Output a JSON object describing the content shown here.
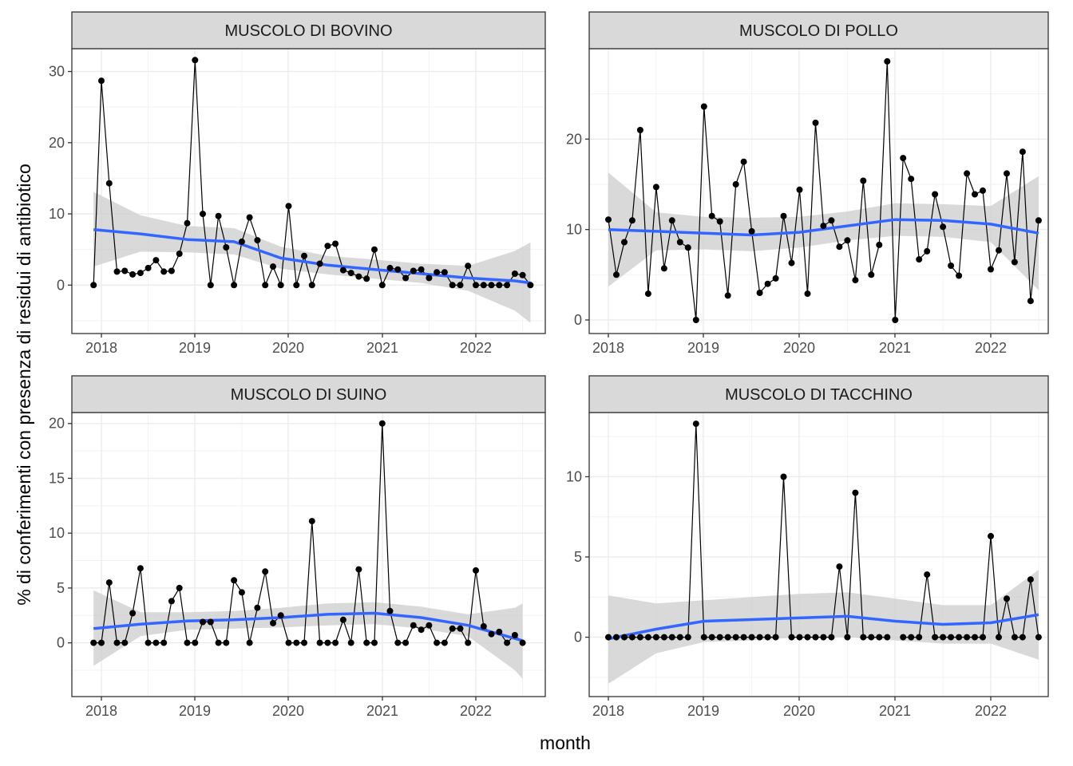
{
  "chart_data": {
    "type": "line",
    "xlabel": "month",
    "ylabel": "% di conferimenti con presenza di residui di antibiotico",
    "grid": true,
    "x_ticks": [
      "2018",
      "2019",
      "2020",
      "2021",
      "2022"
    ],
    "colors": {
      "smooth": "#3366FF",
      "ribbon": "#cccccc",
      "points": "#000000",
      "strip_bg": "#d9d9d9"
    },
    "panels": [
      {
        "title": "MUSCOLO DI BOVINO",
        "start_month": "2017-12",
        "ylim": [
          -6.8,
          33.2
        ],
        "yticks": [
          0,
          10,
          20,
          30
        ],
        "values": [
          0,
          28.7,
          14.3,
          1.9,
          2.0,
          1.5,
          1.7,
          2.4,
          3.5,
          1.9,
          2.0,
          4.4,
          8.7,
          31.6,
          10.0,
          0,
          9.7,
          5.3,
          0,
          6.1,
          9.5,
          6.3,
          0,
          2.6,
          0,
          11.1,
          0,
          4.1,
          0,
          3.0,
          5.5,
          5.8,
          2.1,
          1.7,
          1.2,
          0.9,
          5.0,
          0,
          2.4,
          2.2,
          1.0,
          2.0,
          2.2,
          1.0,
          1.8,
          1.8,
          0,
          0,
          2.7,
          0,
          0,
          0,
          0,
          0,
          1.6,
          1.4,
          0
        ],
        "smooth": [
          [
            0,
            7.8
          ],
          [
            6,
            7.2
          ],
          [
            12,
            6.4
          ],
          [
            18,
            6.1
          ],
          [
            24,
            3.8
          ],
          [
            30,
            2.8
          ],
          [
            36,
            2.2
          ],
          [
            42,
            1.6
          ],
          [
            48,
            1.0
          ],
          [
            54,
            0.6
          ],
          [
            56,
            0.3
          ]
        ],
        "ribbon_upper": [
          [
            0,
            13.1
          ],
          [
            6,
            9.8
          ],
          [
            12,
            8.3
          ],
          [
            18,
            8.0
          ],
          [
            24,
            5.4
          ],
          [
            30,
            4.1
          ],
          [
            36,
            3.6
          ],
          [
            42,
            3.0
          ],
          [
            48,
            2.7
          ],
          [
            54,
            4.8
          ],
          [
            56,
            6.0
          ]
        ],
        "ribbon_lower": [
          [
            0,
            2.6
          ],
          [
            6,
            4.7
          ],
          [
            12,
            4.6
          ],
          [
            18,
            4.3
          ],
          [
            24,
            2.3
          ],
          [
            30,
            1.5
          ],
          [
            36,
            0.9
          ],
          [
            42,
            0.3
          ],
          [
            48,
            -0.8
          ],
          [
            54,
            -3.6
          ],
          [
            56,
            -5.3
          ]
        ]
      },
      {
        "title": "MUSCOLO DI POLLO",
        "start_month": "2018-01",
        "ylim": [
          -1.5,
          30.0
        ],
        "yticks": [
          0,
          10,
          20
        ],
        "values": [
          11.1,
          5.0,
          8.6,
          11.0,
          21.0,
          2.9,
          14.7,
          5.7,
          11.0,
          8.6,
          8.0,
          0,
          23.6,
          11.5,
          10.9,
          2.7,
          15.0,
          17.5,
          9.8,
          3.0,
          4.0,
          4.6,
          11.5,
          6.3,
          14.4,
          2.9,
          21.8,
          10.4,
          11.0,
          8.1,
          8.8,
          4.4,
          15.4,
          5.0,
          8.3,
          28.6,
          0,
          17.9,
          15.6,
          6.7,
          7.6,
          13.9,
          10.3,
          6.0,
          4.9,
          16.2,
          13.9,
          14.3,
          5.6,
          7.7,
          16.2,
          6.4,
          18.6,
          2.1,
          11.0
        ],
        "smooth": [
          [
            0,
            10.0
          ],
          [
            6,
            9.8
          ],
          [
            12,
            9.6
          ],
          [
            18,
            9.4
          ],
          [
            24,
            9.7
          ],
          [
            30,
            10.4
          ],
          [
            36,
            11.1
          ],
          [
            42,
            11.0
          ],
          [
            48,
            10.6
          ],
          [
            54,
            9.6
          ]
        ],
        "ribbon_upper": [
          [
            0,
            16.3
          ],
          [
            6,
            11.9
          ],
          [
            12,
            11.4
          ],
          [
            18,
            11.3
          ],
          [
            24,
            11.4
          ],
          [
            30,
            12.0
          ],
          [
            36,
            12.9
          ],
          [
            42,
            12.8
          ],
          [
            48,
            12.6
          ],
          [
            54,
            15.9
          ]
        ],
        "ribbon_lower": [
          [
            0,
            3.7
          ],
          [
            6,
            7.7
          ],
          [
            12,
            7.8
          ],
          [
            18,
            7.6
          ],
          [
            24,
            8.0
          ],
          [
            30,
            8.8
          ],
          [
            36,
            9.3
          ],
          [
            42,
            9.2
          ],
          [
            48,
            8.6
          ],
          [
            54,
            3.3
          ]
        ]
      },
      {
        "title": "MUSCOLO DI SUINO",
        "start_month": "2017-12",
        "ylim": [
          -4.9,
          21.0
        ],
        "yticks": [
          0,
          5,
          10,
          15,
          20
        ],
        "values": [
          0,
          0,
          5.5,
          0,
          0,
          2.7,
          6.8,
          0,
          0,
          0,
          3.8,
          5.0,
          0,
          0,
          1.9,
          1.9,
          0,
          0,
          5.7,
          4.6,
          0,
          3.2,
          6.5,
          1.8,
          2.5,
          0,
          0,
          0,
          11.1,
          0,
          0,
          0,
          2.1,
          0,
          6.7,
          0,
          0,
          20.0,
          2.9,
          0,
          0,
          1.6,
          1.2,
          1.6,
          0,
          0,
          1.3,
          1.3,
          0,
          6.6,
          1.5,
          0.8,
          1.0,
          0,
          0.7,
          0
        ],
        "smooth": [
          [
            0,
            1.3
          ],
          [
            6,
            1.7
          ],
          [
            12,
            2.0
          ],
          [
            18,
            2.1
          ],
          [
            24,
            2.3
          ],
          [
            30,
            2.6
          ],
          [
            36,
            2.7
          ],
          [
            42,
            2.3
          ],
          [
            48,
            1.6
          ],
          [
            54,
            0.4
          ],
          [
            55,
            0.2
          ]
        ],
        "ribbon_upper": [
          [
            0,
            4.8
          ],
          [
            6,
            2.8
          ],
          [
            12,
            2.8
          ],
          [
            18,
            2.9
          ],
          [
            24,
            3.2
          ],
          [
            30,
            3.6
          ],
          [
            36,
            3.7
          ],
          [
            42,
            3.3
          ],
          [
            48,
            2.6
          ],
          [
            54,
            3.2
          ],
          [
            55,
            3.6
          ]
        ],
        "ribbon_lower": [
          [
            0,
            -2.1
          ],
          [
            6,
            0.6
          ],
          [
            12,
            1.2
          ],
          [
            18,
            1.3
          ],
          [
            24,
            1.4
          ],
          [
            30,
            1.6
          ],
          [
            36,
            1.7
          ],
          [
            42,
            1.3
          ],
          [
            48,
            0.6
          ],
          [
            54,
            -2.5
          ],
          [
            55,
            -3.3
          ]
        ]
      },
      {
        "title": "MUSCOLO DI TACCHINO",
        "start_month": "2018-01",
        "ylim": [
          -3.7,
          14.0
        ],
        "yticks": [
          0,
          5,
          10
        ],
        "values": [
          0,
          0,
          0,
          0,
          0,
          0,
          0,
          0,
          0,
          0,
          0,
          13.3,
          0,
          0,
          0,
          0,
          0,
          0,
          0,
          0,
          0,
          0,
          10.0,
          0,
          0,
          0,
          0,
          0,
          0,
          4.4,
          0,
          9.0,
          0,
          0,
          0,
          0,
          null,
          0,
          0,
          0,
          3.9,
          0,
          0,
          0,
          0,
          0,
          0,
          0,
          6.3,
          0,
          2.4,
          0,
          0,
          3.6,
          0
        ],
        "smooth": [
          [
            0,
            -0.1
          ],
          [
            6,
            0.5
          ],
          [
            12,
            1.0
          ],
          [
            18,
            1.1
          ],
          [
            24,
            1.2
          ],
          [
            30,
            1.3
          ],
          [
            36,
            1.0
          ],
          [
            42,
            0.8
          ],
          [
            48,
            0.9
          ],
          [
            54,
            1.4
          ]
        ],
        "ribbon_upper": [
          [
            0,
            2.6
          ],
          [
            6,
            2.1
          ],
          [
            12,
            2.3
          ],
          [
            18,
            2.5
          ],
          [
            24,
            2.7
          ],
          [
            30,
            2.8
          ],
          [
            36,
            2.4
          ],
          [
            42,
            2.0
          ],
          [
            48,
            2.0
          ],
          [
            54,
            4.2
          ]
        ],
        "ribbon_lower": [
          [
            0,
            -2.9
          ],
          [
            6,
            -1.0
          ],
          [
            12,
            -0.3
          ],
          [
            18,
            -0.2
          ],
          [
            24,
            0.0
          ],
          [
            30,
            0.0
          ],
          [
            36,
            -0.2
          ],
          [
            42,
            -0.4
          ],
          [
            48,
            -0.4
          ],
          [
            54,
            -1.4
          ]
        ]
      }
    ]
  }
}
